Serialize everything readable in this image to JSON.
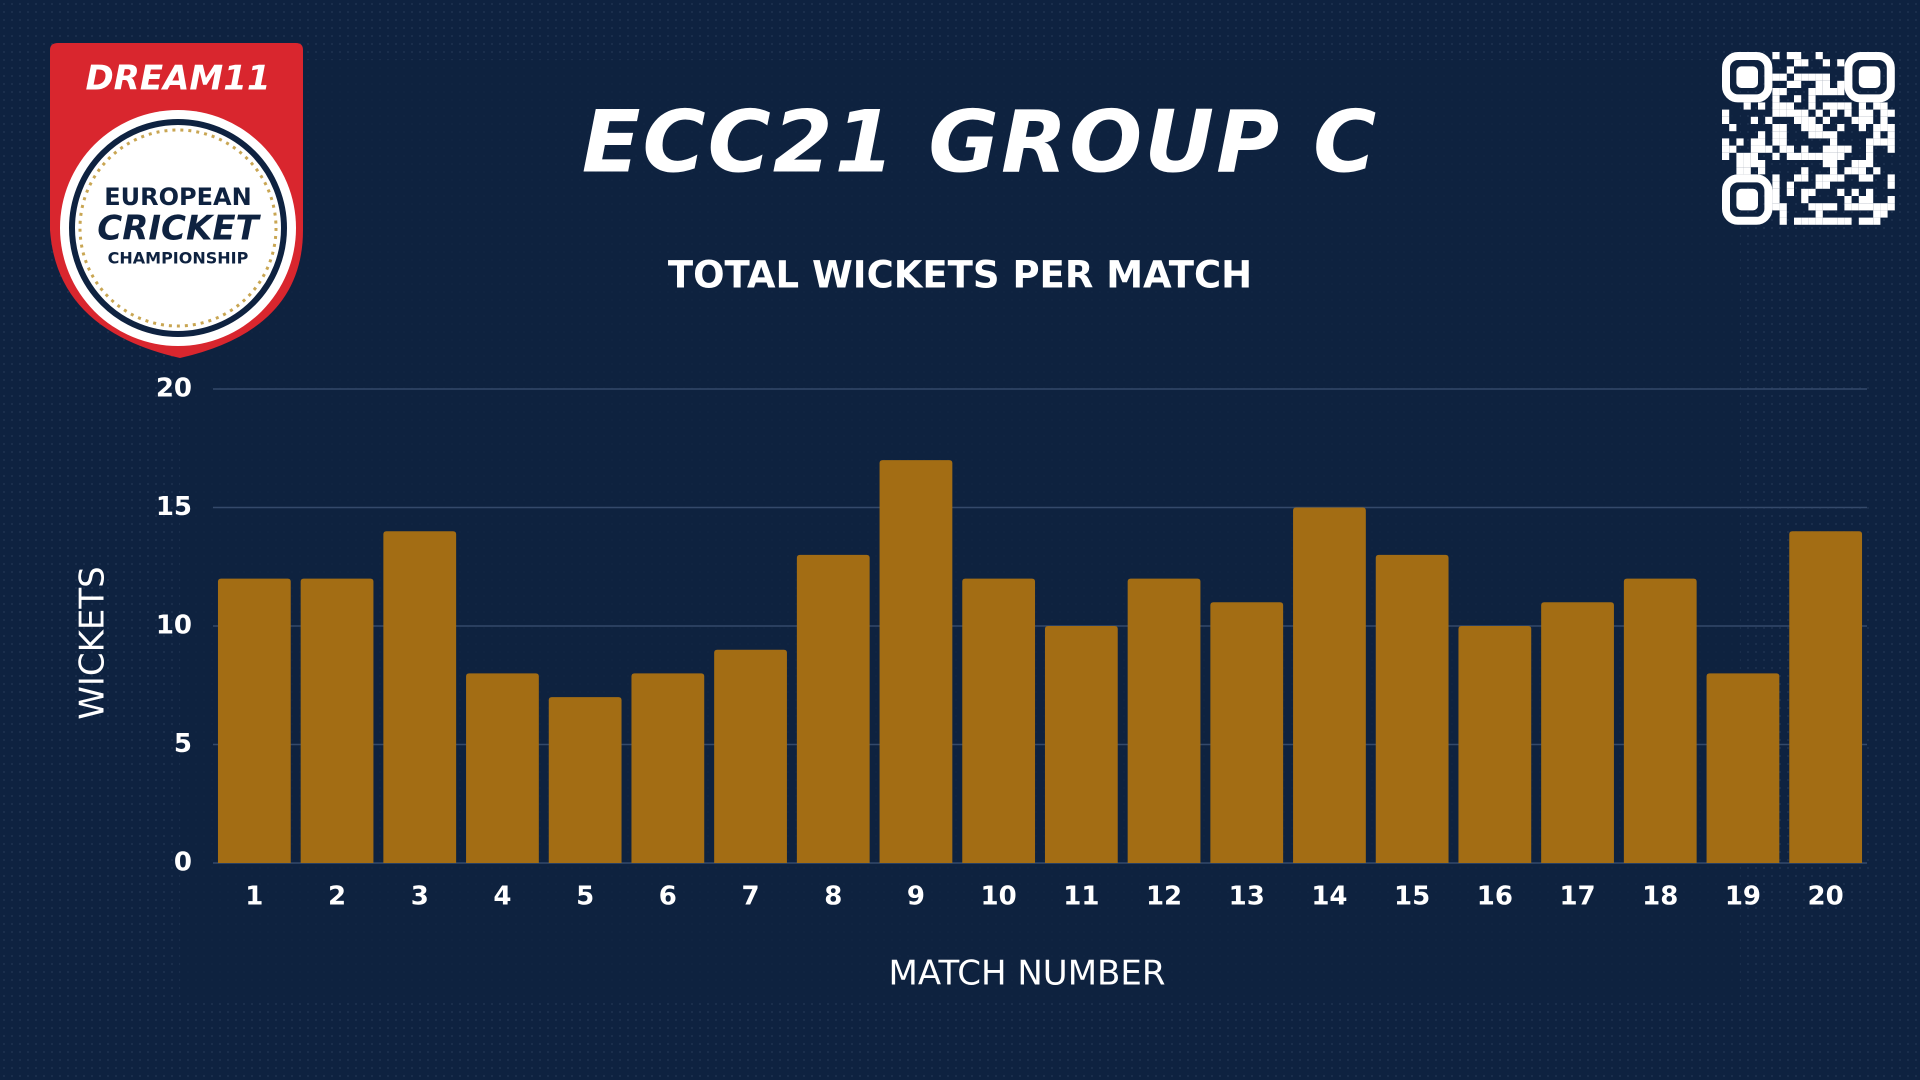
{
  "logo": {
    "brand": "DREAM11",
    "lines": [
      "EUROPEAN",
      "CRICKET",
      "CHAMPIONSHIP"
    ]
  },
  "chart_data": {
    "type": "bar",
    "title": "ECC21 GROUP C",
    "subtitle": "TOTAL WICKETS PER MATCH",
    "x_label": "MATCH NUMBER",
    "y_label": "WICKETS",
    "categories": [
      "1",
      "2",
      "3",
      "4",
      "5",
      "6",
      "7",
      "8",
      "9",
      "10",
      "11",
      "12",
      "13",
      "14",
      "15",
      "16",
      "17",
      "18",
      "19",
      "20"
    ],
    "values": [
      12,
      12,
      14,
      8,
      7,
      8,
      9,
      13,
      17,
      12,
      10,
      12,
      11,
      15,
      13,
      10,
      11,
      12,
      8,
      14
    ],
    "color": "#a36d14",
    "ylim": [
      0,
      20
    ],
    "yticks": [
      0,
      5,
      10,
      15,
      20
    ],
    "grid": true
  }
}
